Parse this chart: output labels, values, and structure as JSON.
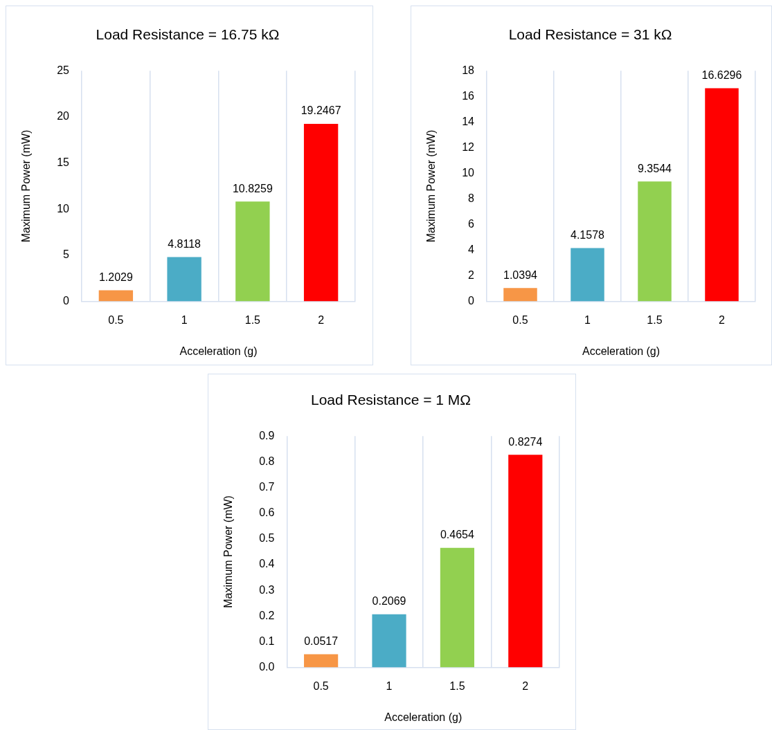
{
  "chart_data": [
    {
      "type": "bar",
      "title": "Load Resistance = 16.75 kΩ",
      "xlabel": "Acceleration (g)",
      "ylabel": "Maximum Power (mW)",
      "categories": [
        "0.5",
        "1",
        "1.5",
        "2"
      ],
      "values": [
        1.2029,
        4.8118,
        10.8259,
        19.2467
      ],
      "colors": [
        "#f79646",
        "#4bacc6",
        "#92d050",
        "#ff0000"
      ],
      "ylim": [
        0,
        25
      ],
      "yticks": [
        0,
        5,
        10,
        15,
        20,
        25
      ],
      "grid": "x",
      "data_labels": true
    },
    {
      "type": "bar",
      "title": "Load Resistance = 31 kΩ",
      "xlabel": "Acceleration (g)",
      "ylabel": "Maximum Power (mW)",
      "categories": [
        "0.5",
        "1",
        "1.5",
        "2"
      ],
      "values": [
        1.0394,
        4.1578,
        9.3544,
        16.6296
      ],
      "colors": [
        "#f79646",
        "#4bacc6",
        "#92d050",
        "#ff0000"
      ],
      "ylim": [
        0,
        18
      ],
      "yticks": [
        0,
        2,
        4,
        6,
        8,
        10,
        12,
        14,
        16,
        18
      ],
      "grid": "x",
      "data_labels": true
    },
    {
      "type": "bar",
      "title": "Load Resistance = 1 MΩ",
      "xlabel": "Acceleration (g)",
      "ylabel": "Maximum Power (mW)",
      "categories": [
        "0.5",
        "1",
        "1.5",
        "2"
      ],
      "values": [
        0.0517,
        0.2069,
        0.4654,
        0.8274
      ],
      "colors": [
        "#f79646",
        "#4bacc6",
        "#92d050",
        "#ff0000"
      ],
      "ylim": [
        0,
        0.9
      ],
      "yticks": [
        {
          "value": 0,
          "label": "0.0"
        },
        0.1,
        0.2,
        0.3,
        0.4,
        0.5,
        0.6,
        0.7,
        0.8,
        0.9
      ],
      "grid": "x",
      "data_labels": true
    }
  ]
}
